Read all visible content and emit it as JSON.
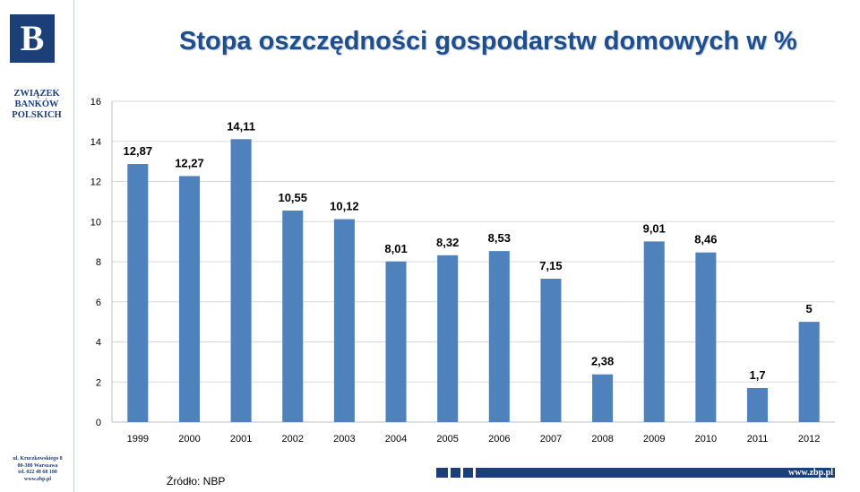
{
  "header": {
    "title": "Stopa oszczędności gospodarstw domowych w %"
  },
  "branding": {
    "logo_letter": "B",
    "org_name_lines": [
      "ZWIĄZEK",
      "BANKÓW",
      "POLSKICH"
    ],
    "address_lines": [
      "ul. Kruczkowskiego 8",
      "00-380 Warszawa",
      "tel. 022 48 68 180",
      "www.zbp.pl"
    ],
    "footer_url": "www.zbp.pl",
    "brand_color": "#1c3f78"
  },
  "source_note": "Źródło: NBP",
  "chart_data": {
    "type": "bar",
    "title": "",
    "xlabel": "",
    "ylabel": "",
    "ylim": [
      0,
      16
    ],
    "yticks": [
      0,
      2,
      4,
      6,
      8,
      10,
      12,
      14,
      16
    ],
    "grid": true,
    "legend": "none",
    "bar_color": "#4f81bd",
    "categories": [
      "1999",
      "2000",
      "2001",
      "2002",
      "2003",
      "2004",
      "2005",
      "2006",
      "2007",
      "2008",
      "2009",
      "2010",
      "2011",
      "2012"
    ],
    "values": [
      12.87,
      12.27,
      14.11,
      10.55,
      10.12,
      8.01,
      8.32,
      8.53,
      7.15,
      2.38,
      9.01,
      8.46,
      1.7,
      5
    ],
    "data_labels": [
      "12,87",
      "12,27",
      "14,11",
      "10,55",
      "10,12",
      "8,01",
      "8,32",
      "8,53",
      "7,15",
      "2,38",
      "9,01",
      "8,46",
      "1,7",
      "5"
    ]
  }
}
